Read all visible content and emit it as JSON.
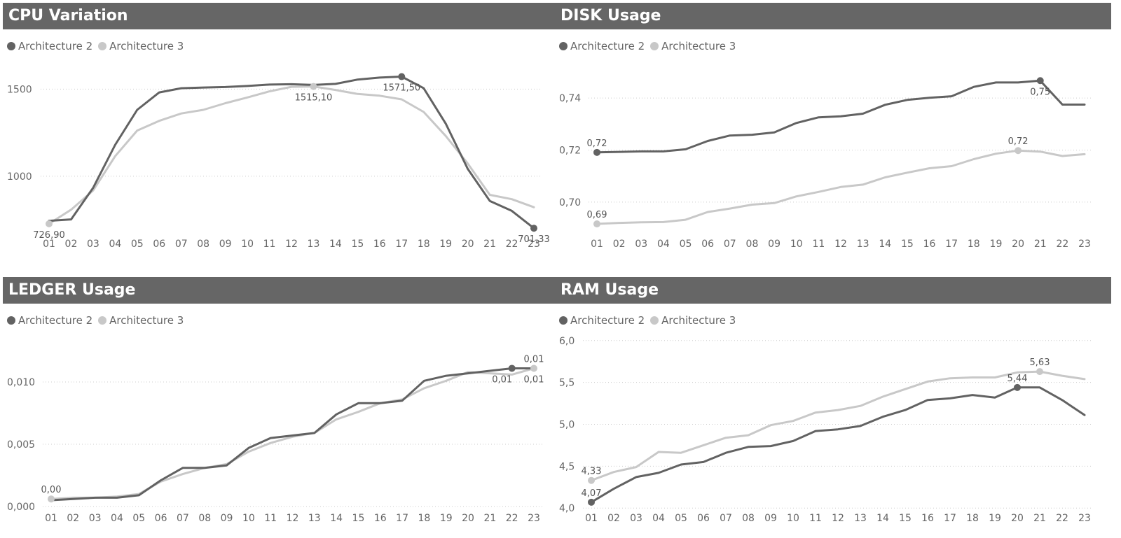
{
  "colors": {
    "arch2": "#626262",
    "arch3": "#c8c8c8",
    "title_bg": "#666666",
    "grid": "#cccccc"
  },
  "chart_data": [
    {
      "type": "line",
      "title": "CPU Variation",
      "categories": [
        "01",
        "02",
        "03",
        "04",
        "05",
        "06",
        "07",
        "08",
        "09",
        "10",
        "11",
        "12",
        "13",
        "14",
        "15",
        "16",
        "17",
        "18",
        "19",
        "20",
        "21",
        "22",
        "23"
      ],
      "series": [
        {
          "name": "Architecture 2",
          "values": [
            744,
            752,
            933,
            1180,
            1381,
            1481,
            1505,
            1509,
            1512,
            1518,
            1526,
            1528,
            1524,
            1530,
            1555,
            1566,
            1571.5,
            1505,
            1302,
            1042,
            858,
            801,
            701.33
          ]
        },
        {
          "name": "Architecture 3",
          "values": [
            726.9,
            808,
            918,
            1115,
            1262,
            1318,
            1360,
            1381,
            1419,
            1452,
            1487,
            1513,
            1515.1,
            1495,
            1472,
            1462,
            1441,
            1369,
            1231,
            1073,
            893,
            868,
            822
          ]
        }
      ],
      "yticks": [
        1000,
        1500
      ],
      "ytick_labels": [
        "1000",
        "1500"
      ],
      "ylim": [
        650,
        1650
      ],
      "annotations": [
        {
          "series": 1,
          "index": 0,
          "text": "726,90",
          "pos": "below"
        },
        {
          "series": 1,
          "index": 12,
          "text": "1515,10",
          "pos": "below"
        },
        {
          "series": 0,
          "index": 16,
          "text": "1571,50",
          "pos": "below"
        },
        {
          "series": 0,
          "index": 22,
          "text": "701,33",
          "pos": "below"
        }
      ]
    },
    {
      "type": "line",
      "title": "DISK Usage",
      "categories": [
        "01",
        "02",
        "03",
        "04",
        "05",
        "06",
        "07",
        "08",
        "09",
        "10",
        "11",
        "12",
        "13",
        "14",
        "15",
        "16",
        "17",
        "18",
        "19",
        "20",
        "21",
        "22",
        "23"
      ],
      "series": [
        {
          "name": "Architecture 2",
          "values": [
            0.7191,
            0.7193,
            0.7195,
            0.7195,
            0.7203,
            0.7235,
            0.7256,
            0.7259,
            0.7268,
            0.7304,
            0.7326,
            0.733,
            0.734,
            0.7374,
            0.7393,
            0.7401,
            0.7407,
            0.7443,
            0.746,
            0.746,
            0.7467,
            0.7375,
            0.7375
          ]
        },
        {
          "name": "Architecture 3",
          "values": [
            0.6916,
            0.692,
            0.6922,
            0.6923,
            0.6932,
            0.6962,
            0.6975,
            0.699,
            0.6996,
            0.7022,
            0.7039,
            0.7058,
            0.7067,
            0.7095,
            0.7113,
            0.713,
            0.7138,
            0.7165,
            0.7186,
            0.7198,
            0.7194,
            0.7177,
            0.7184
          ]
        }
      ],
      "yticks": [
        0.7,
        0.72,
        0.74
      ],
      "ytick_labels": [
        "0,70",
        "0,72",
        "0,74"
      ],
      "ylim": [
        0.6865,
        0.7535
      ],
      "annotations": [
        {
          "series": 0,
          "index": 0,
          "text": "0,72",
          "pos": "above"
        },
        {
          "series": 1,
          "index": 0,
          "text": "0,69",
          "pos": "above"
        },
        {
          "series": 1,
          "index": 19,
          "text": "0,72",
          "pos": "above"
        },
        {
          "series": 0,
          "index": 20,
          "text": "0,75",
          "pos": "below"
        }
      ]
    },
    {
      "type": "line",
      "title": "LEDGER Usage",
      "categories": [
        "01",
        "02",
        "03",
        "04",
        "05",
        "06",
        "07",
        "08",
        "09",
        "10",
        "11",
        "12",
        "13",
        "14",
        "15",
        "16",
        "17",
        "18",
        "19",
        "20",
        "21",
        "22",
        "23"
      ],
      "series": [
        {
          "name": "Architecture 2",
          "values": [
            0.0005,
            0.0006,
            0.0007,
            0.0007,
            0.0009,
            0.0021,
            0.0031,
            0.0031,
            0.0033,
            0.0047,
            0.0055,
            0.0057,
            0.0059,
            0.0074,
            0.0083,
            0.0083,
            0.0085,
            0.0101,
            0.0105,
            0.0107,
            0.0109,
            0.0111,
            0.0111
          ]
        },
        {
          "name": "Architecture 3",
          "values": [
            0.0006,
            0.0007,
            0.0007,
            0.0008,
            0.001,
            0.002,
            0.0026,
            0.0031,
            0.0034,
            0.0044,
            0.0051,
            0.0056,
            0.0059,
            0.007,
            0.0076,
            0.0083,
            0.0086,
            0.0095,
            0.0101,
            0.0108,
            0.0107,
            0.0106,
            0.0111
          ]
        }
      ],
      "yticks": [
        0.0,
        0.005,
        0.01
      ],
      "ytick_labels": [
        "0,000",
        "0,005",
        "0,010"
      ],
      "ylim": [
        -0.0004,
        0.0136
      ],
      "annotations": [
        {
          "series": 1,
          "index": 0,
          "text": "0,00",
          "pos": "above"
        },
        {
          "series": 0,
          "index": 21,
          "text": "0,01",
          "pos": "below",
          "dx": -14
        },
        {
          "series": 1,
          "index": 22,
          "text": "0,01",
          "pos": "below",
          "dx": 0
        },
        {
          "series": 1,
          "index": 22,
          "text": "0,01",
          "pos": "above",
          "dx": 0
        }
      ]
    },
    {
      "type": "line",
      "title": "RAM Usage",
      "categories": [
        "01",
        "02",
        "03",
        "04",
        "05",
        "06",
        "07",
        "08",
        "09",
        "10",
        "11",
        "12",
        "13",
        "14",
        "15",
        "16",
        "17",
        "18",
        "19",
        "20",
        "21",
        "22",
        "23"
      ],
      "series": [
        {
          "name": "Architecture 2",
          "values": [
            4.07,
            4.23,
            4.37,
            4.42,
            4.52,
            4.55,
            4.66,
            4.73,
            4.74,
            4.8,
            4.92,
            4.94,
            4.98,
            5.09,
            5.17,
            5.29,
            5.31,
            5.35,
            5.32,
            5.44,
            5.44,
            5.29,
            5.11
          ]
        },
        {
          "name": "Architecture 3",
          "values": [
            4.33,
            4.43,
            4.49,
            4.67,
            4.66,
            4.75,
            4.84,
            4.87,
            4.99,
            5.04,
            5.14,
            5.17,
            5.22,
            5.33,
            5.42,
            5.51,
            5.55,
            5.56,
            5.56,
            5.62,
            5.63,
            5.58,
            5.54
          ]
        }
      ],
      "yticks": [
        4.0,
        4.5,
        5.0,
        5.5,
        6.0
      ],
      "ytick_labels": [
        "4,0",
        "4,5",
        "5,0",
        "5,5",
        "6,0"
      ],
      "ylim": [
        3.96,
        6.04
      ],
      "annotations": [
        {
          "series": 1,
          "index": 0,
          "text": "4,33",
          "pos": "above"
        },
        {
          "series": 0,
          "index": 0,
          "text": "4,07",
          "pos": "above"
        },
        {
          "series": 0,
          "index": 19,
          "text": "5,44",
          "pos": "above"
        },
        {
          "series": 1,
          "index": 20,
          "text": "5,63",
          "pos": "above"
        }
      ]
    }
  ]
}
